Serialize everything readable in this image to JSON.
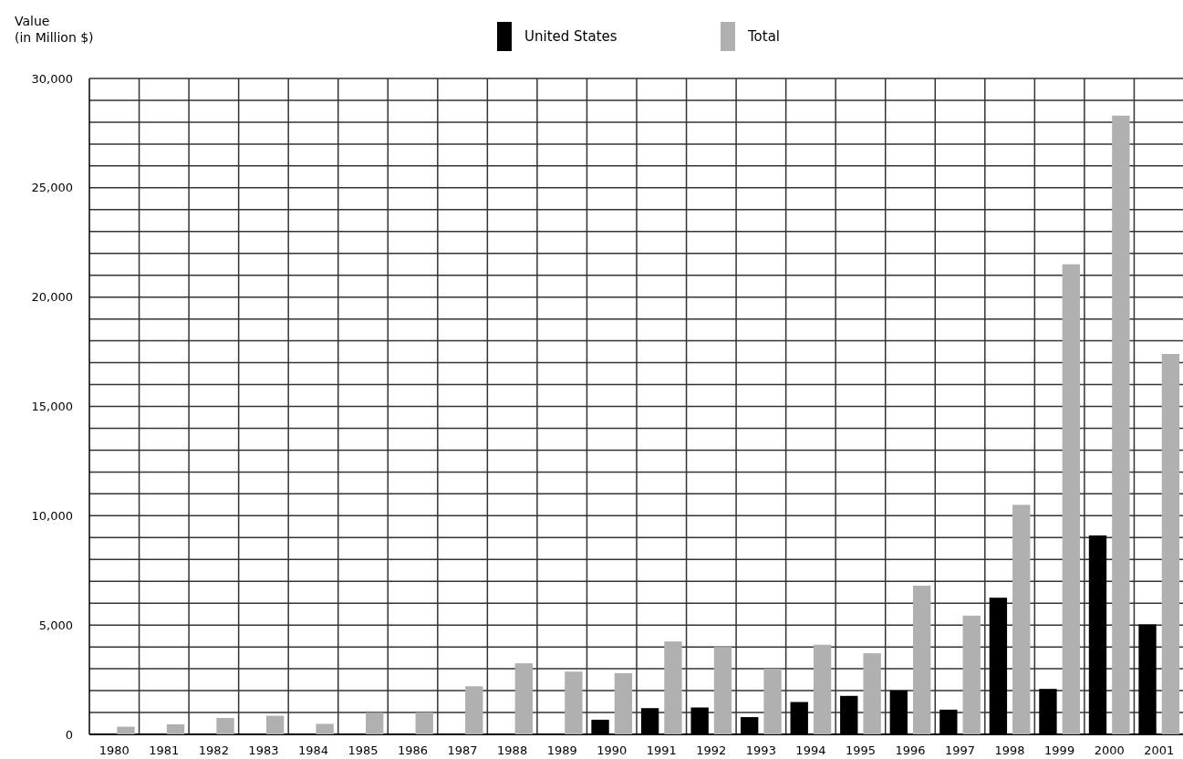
{
  "chart_data": {
    "type": "bar",
    "ylabel": "Value (in Million $)",
    "categories": [
      "1980",
      "1981",
      "1982",
      "1983",
      "1984",
      "1985",
      "1986",
      "1987",
      "1988",
      "1989",
      "1990",
      "1991",
      "1992",
      "1993",
      "1994",
      "1995",
      "1996",
      "1997",
      "1998",
      "1999",
      "2000",
      "2001"
    ],
    "series": [
      {
        "name": "United States",
        "color": "#000000",
        "values": [
          null,
          null,
          null,
          null,
          null,
          null,
          null,
          null,
          null,
          null,
          670,
          1200,
          1230,
          790,
          1480,
          1760,
          2010,
          1130,
          6250,
          2080,
          9100,
          5030
        ]
      },
      {
        "name": "Total",
        "color": "#b0b0b0",
        "values": [
          350,
          460,
          750,
          850,
          480,
          990,
          1000,
          2200,
          3250,
          2870,
          2800,
          4250,
          4000,
          3000,
          4100,
          3710,
          6800,
          5430,
          10500,
          21500,
          28300,
          17400
        ]
      }
    ],
    "ylim": [
      0,
      30000
    ],
    "yticks": [
      0,
      {
        "value": 1000,
        "label": null
      },
      {
        "value": 2000,
        "label": null
      },
      {
        "value": 3000,
        "label": null
      },
      {
        "value": 4000,
        "label": null
      },
      {
        "value": 5000,
        "label": "5,000"
      },
      {
        "value": 6000,
        "label": null
      },
      {
        "value": 7000,
        "label": null
      },
      {
        "value": 8000,
        "label": null
      },
      {
        "value": 9000,
        "label": null
      },
      {
        "value": 10000,
        "label": "10,000"
      },
      {
        "value": 11000,
        "label": null
      },
      {
        "value": 12000,
        "label": null
      },
      {
        "value": 13000,
        "label": null
      },
      {
        "value": 14000,
        "label": null
      },
      {
        "value": 15000,
        "label": "15,000"
      },
      {
        "value": 16000,
        "label": null
      },
      {
        "value": 17000,
        "label": null
      },
      {
        "value": 18000,
        "label": null
      },
      {
        "value": 19000,
        "label": null
      },
      {
        "value": 20000,
        "label": "20,000"
      },
      {
        "value": 21000,
        "label": null
      },
      {
        "value": 22000,
        "label": null
      },
      {
        "value": 23000,
        "label": null
      },
      {
        "value": 24000,
        "label": null
      },
      {
        "value": 25000,
        "label": "25,000"
      },
      {
        "value": 26000,
        "label": null
      },
      {
        "value": 27000,
        "label": null
      },
      {
        "value": 28000,
        "label": null
      },
      {
        "value": 29000,
        "label": null
      },
      {
        "value": 30000,
        "label": "30,000"
      }
    ],
    "grid": true,
    "legend": "top"
  }
}
